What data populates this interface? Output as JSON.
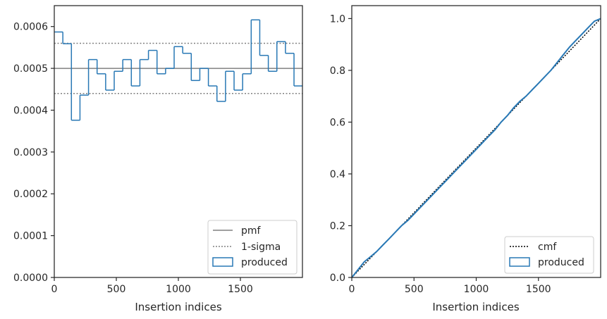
{
  "chart_data": [
    {
      "type": "histogram",
      "xlabel": "Insertion indices",
      "ylabel": "",
      "xlim": [
        0,
        2000
      ],
      "ylim": [
        0,
        0.00065
      ],
      "xticks": [
        0,
        500,
        1000,
        1500
      ],
      "xtick_labels": [
        "0",
        "500",
        "1000",
        "1500"
      ],
      "yticks": [
        0,
        0.0001,
        0.0002,
        0.0003,
        0.0004,
        0.0005,
        0.0006
      ],
      "ytick_labels": [
        "0.0000",
        "0.0001",
        "0.0002",
        "0.0003",
        "0.0004",
        "0.0005",
        "0.0006"
      ],
      "grid": false,
      "legend_position": "lower-right",
      "bin_edges": [
        0,
        69,
        138,
        207,
        276,
        345,
        414,
        483,
        552,
        621,
        690,
        759,
        828,
        897,
        966,
        1035,
        1104,
        1173,
        1242,
        1311,
        1380,
        1449,
        1518,
        1587,
        1656,
        1725,
        1794,
        1863,
        1932,
        2000
      ],
      "series": [
        {
          "name": "produced",
          "style": "step",
          "color": "#2878b5",
          "values": [
            0.000587,
            0.000559,
            0.000376,
            0.000436,
            0.000521,
            0.000487,
            0.000448,
            0.000493,
            0.000521,
            0.000458,
            0.000521,
            0.000543,
            0.000487,
            0.0005,
            0.000552,
            0.000536,
            0.000471,
            0.0005,
            0.000458,
            0.000421,
            0.000493,
            0.000448,
            0.000487,
            0.000616,
            0.000531,
            0.000493,
            0.000564,
            0.000536,
            0.000458
          ]
        },
        {
          "name": "pmf",
          "style": "hline",
          "color": "#808080",
          "y": 0.0005
        },
        {
          "name": "1-sigma",
          "style": "hline-dotted",
          "color": "#808080",
          "y": [
            0.00044,
            0.00056
          ]
        }
      ]
    },
    {
      "type": "line",
      "xlabel": "Insertion indices",
      "ylabel": "",
      "xlim": [
        0,
        2000
      ],
      "ylim": [
        0,
        1.05
      ],
      "xticks": [
        0,
        500,
        1000,
        1500
      ],
      "xtick_labels": [
        "0",
        "500",
        "1000",
        "1500"
      ],
      "yticks": [
        0,
        0.2,
        0.4,
        0.6,
        0.8,
        1.0
      ],
      "ytick_labels": [
        "0.0",
        "0.2",
        "0.4",
        "0.6",
        "0.8",
        "1.0"
      ],
      "grid": false,
      "legend_position": "lower-right",
      "series": [
        {
          "name": "cmf",
          "style": "dotted",
          "color": "#000000",
          "x": [
            0,
            2000
          ],
          "y": [
            0,
            1.0
          ]
        },
        {
          "name": "produced",
          "style": "solid",
          "color": "#2878b5",
          "x": [
            0,
            50,
            100,
            150,
            200,
            250,
            300,
            350,
            400,
            450,
            500,
            550,
            600,
            650,
            700,
            750,
            800,
            850,
            900,
            950,
            1000,
            1050,
            1100,
            1150,
            1200,
            1250,
            1300,
            1350,
            1400,
            1450,
            1500,
            1550,
            1600,
            1650,
            1700,
            1750,
            1800,
            1850,
            1900,
            1950,
            2000
          ],
          "y": [
            0,
            0.03,
            0.06,
            0.08,
            0.1,
            0.125,
            0.15,
            0.175,
            0.2,
            0.22,
            0.245,
            0.27,
            0.295,
            0.32,
            0.345,
            0.37,
            0.395,
            0.42,
            0.445,
            0.47,
            0.495,
            0.52,
            0.545,
            0.57,
            0.6,
            0.625,
            0.655,
            0.68,
            0.7,
            0.725,
            0.75,
            0.775,
            0.8,
            0.83,
            0.86,
            0.89,
            0.915,
            0.94,
            0.965,
            0.99,
            1.0
          ]
        }
      ]
    }
  ]
}
